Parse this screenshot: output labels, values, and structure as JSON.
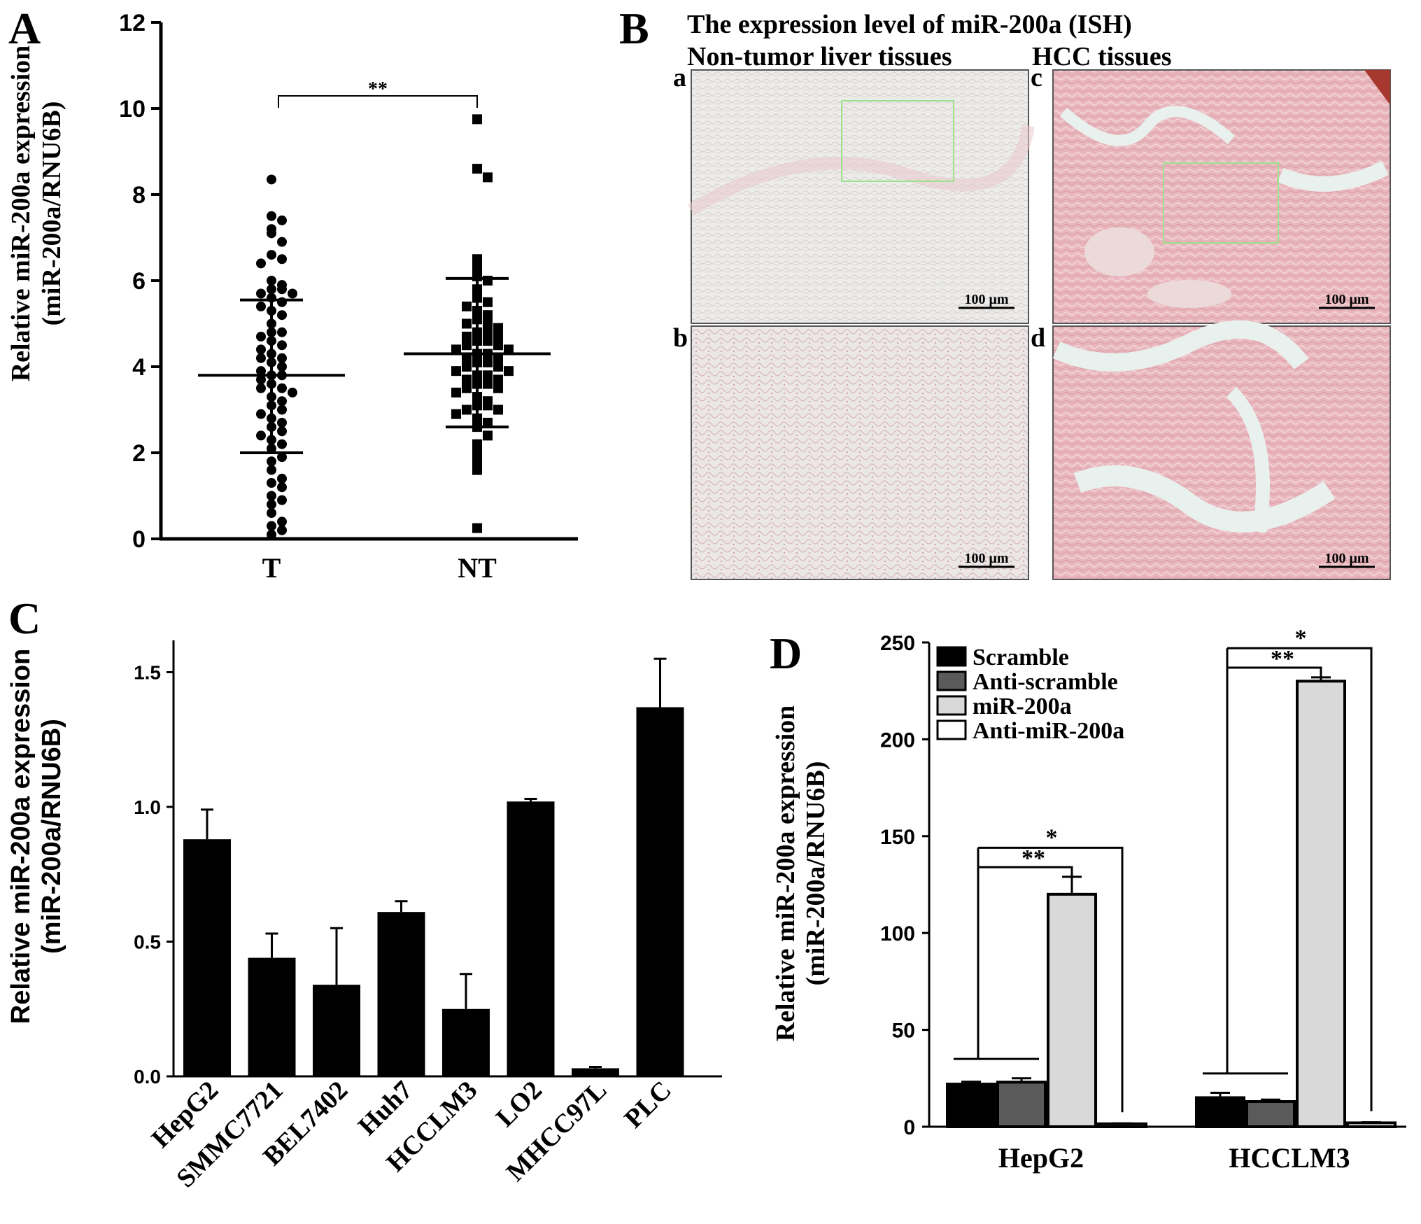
{
  "panels": {
    "A": {
      "letter": "A"
    },
    "B": {
      "letter": "B",
      "title": "The expression level of miR-200a (ISH)",
      "col_left": "Non-tumor liver tissues",
      "col_right": "HCC tissues",
      "sub_labels": [
        "a",
        "b",
        "c",
        "d"
      ],
      "scale_label": "100 μm"
    },
    "C": {
      "letter": "C"
    },
    "D": {
      "letter": "D"
    }
  },
  "colors": {
    "black": "#000000",
    "dark_gray": "#5a5a5a",
    "light_gray": "#d9d9d9",
    "white": "#ffffff",
    "tissue_pink": "#f1dede",
    "tissue_pink_dark": "#e7b4bb",
    "box_green": "#9be28a"
  },
  "chart_data": [
    {
      "panel": "A",
      "type": "scatter",
      "ylabel_line1": "Relative miR-200a expression",
      "ylabel_line2": "(miR-200a/RNU6B)",
      "categories": [
        "T",
        "NT"
      ],
      "ylim": [
        0,
        12
      ],
      "yticks": [
        "0",
        "2",
        "4",
        "6",
        "8",
        "10",
        "12"
      ],
      "significance": "**",
      "series": [
        {
          "category": "T",
          "marker": "circle",
          "mean": 3.8,
          "sd_low": 2.0,
          "sd_high": 5.55,
          "values": [
            8.35,
            7.5,
            7.4,
            7.2,
            7.1,
            6.9,
            6.6,
            6.5,
            6.4,
            6.0,
            5.9,
            5.8,
            5.8,
            5.7,
            5.7,
            5.6,
            5.5,
            5.4,
            5.3,
            5.2,
            5.0,
            4.8,
            4.8,
            4.7,
            4.6,
            4.5,
            4.4,
            4.3,
            4.2,
            4.2,
            4.1,
            4.0,
            3.9,
            3.8,
            3.8,
            3.7,
            3.6,
            3.5,
            3.5,
            3.4,
            3.3,
            3.2,
            3.1,
            3.0,
            2.9,
            2.8,
            2.7,
            2.6,
            2.5,
            2.4,
            2.3,
            2.2,
            2.1,
            1.9,
            1.8,
            1.6,
            1.4,
            1.3,
            1.2,
            1.0,
            0.9,
            0.8,
            0.6,
            0.4,
            0.3,
            0.2,
            0.1
          ]
        },
        {
          "category": "NT",
          "marker": "square",
          "mean": 4.3,
          "sd_low": 2.6,
          "sd_high": 6.05,
          "values": [
            9.75,
            8.6,
            8.4,
            6.5,
            6.3,
            6.1,
            6.0,
            5.8,
            5.6,
            5.5,
            5.4,
            5.3,
            5.2,
            5.1,
            5.0,
            5.0,
            4.9,
            4.8,
            4.8,
            4.7,
            4.7,
            4.6,
            4.6,
            4.5,
            4.5,
            4.4,
            4.4,
            4.3,
            4.3,
            4.2,
            4.2,
            4.1,
            4.1,
            4.0,
            4.0,
            3.9,
            3.9,
            3.8,
            3.8,
            3.7,
            3.7,
            3.6,
            3.6,
            3.5,
            3.5,
            3.4,
            3.3,
            3.2,
            3.1,
            3.1,
            3.0,
            3.0,
            2.9,
            2.8,
            2.7,
            2.6,
            2.4,
            2.2,
            2.0,
            1.8,
            1.6,
            0.25
          ]
        }
      ]
    },
    {
      "panel": "C",
      "type": "bar",
      "ylabel_line1": "Relative miR-200a expression",
      "ylabel_line2": "(miR-200a/RNU6B)",
      "categories": [
        "HepG2",
        "SMMC7721",
        "BEL7402",
        "Huh7",
        "HCCLM3",
        "LO2",
        "MHCC97L",
        "PLC"
      ],
      "values": [
        0.88,
        0.44,
        0.34,
        0.61,
        0.25,
        1.02,
        0.03,
        1.37
      ],
      "errors": [
        0.11,
        0.09,
        0.21,
        0.04,
        0.13,
        0.01,
        0.005,
        0.18
      ],
      "ylim": [
        0,
        1.6
      ],
      "yticks": [
        "0.0",
        "0.5",
        "1.0",
        "1.5"
      ]
    },
    {
      "panel": "D",
      "type": "bar",
      "ylabel_line1": "Relative miR-200a expression",
      "ylabel_line2": "(miR-200a/RNU6B)",
      "categories": [
        "HepG2",
        "HCCLM3"
      ],
      "ylim": [
        0,
        250
      ],
      "yticks": [
        "0",
        "50",
        "100",
        "150",
        "200",
        "250"
      ],
      "legend": [
        "Scramble",
        "Anti-scramble",
        "miR-200a",
        "Anti-miR-200a"
      ],
      "series": [
        {
          "name": "Scramble",
          "values": [
            22,
            15
          ],
          "errors": [
            1.2,
            2.5
          ]
        },
        {
          "name": "Anti-scramble",
          "values": [
            23,
            13
          ],
          "errors": [
            2.0,
            1.0
          ]
        },
        {
          "name": "miR-200a",
          "values": [
            120,
            230
          ],
          "errors": [
            9,
            2
          ]
        },
        {
          "name": "Anti-miR-200a",
          "values": [
            1.5,
            2.0
          ],
          "errors": [
            0.2,
            0.3
          ]
        }
      ],
      "significance": [
        {
          "group": "HepG2",
          "label_inner": "**",
          "label_outer": "*"
        },
        {
          "group": "HCCLM3",
          "label_inner": "**",
          "label_outer": "*"
        }
      ]
    }
  ]
}
